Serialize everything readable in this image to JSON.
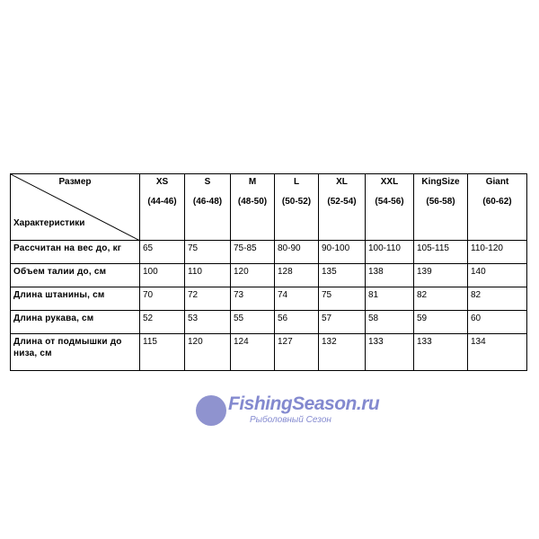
{
  "table": {
    "corner_top": "Размер",
    "corner_bottom": "Характеристики",
    "sizes": [
      {
        "name": "XS",
        "range": "(44-46)"
      },
      {
        "name": "S",
        "range": "(46-48)"
      },
      {
        "name": "M",
        "range": "(48-50)"
      },
      {
        "name": "L",
        "range": "(50-52)"
      },
      {
        "name": "XL",
        "range": "(52-54)"
      },
      {
        "name": "XXL",
        "range": "(54-56)"
      },
      {
        "name": "KingSize",
        "range": "(56-58)"
      },
      {
        "name": "Giant",
        "range": "(60-62)"
      }
    ],
    "rows": [
      {
        "label": "Рассчитан на вес до, кг",
        "values": [
          " 65",
          "75",
          "75-85",
          "80-90",
          "90-100",
          "100-110",
          "105-115",
          "110-120"
        ]
      },
      {
        "label": "Объем талии до, см",
        "values": [
          "100",
          "110",
          "120",
          "128",
          "135",
          "138",
          "139",
          "140"
        ]
      },
      {
        "label": "Длина штанины, см",
        "values": [
          "70",
          "72",
          "73",
          "74",
          "75",
          "81",
          "82",
          "82"
        ]
      },
      {
        "label": "Длина рукава, см",
        "values": [
          "52",
          "53",
          "55",
          "56",
          "57",
          "58",
          "59",
          "60"
        ]
      },
      {
        "label": "Длина от подмышки до низа, см",
        "values": [
          "115",
          "120",
          "124",
          "127",
          "132",
          "133",
          "133",
          "134"
        ]
      }
    ]
  },
  "watermark": {
    "brand": "FishingSeason.ru",
    "tagline": "Рыболовный Сезон",
    "color": "#5a62c0"
  }
}
